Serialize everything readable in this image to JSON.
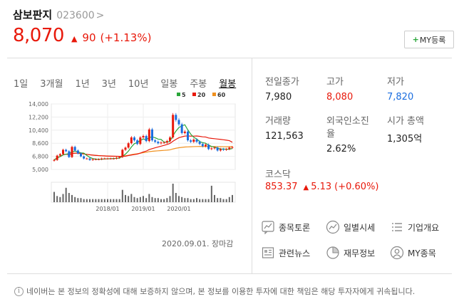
{
  "stock": {
    "name": "삼보판지",
    "code": "023600",
    "code_arrow": ">",
    "price": "8,070",
    "change_arrow": "▲",
    "change": "90",
    "change_pct": "(+1.13%)"
  },
  "my_button": {
    "plus": "+",
    "label": "MY등록"
  },
  "tabs": [
    {
      "label": "1일",
      "active": false
    },
    {
      "label": "3개월",
      "active": false
    },
    {
      "label": "1년",
      "active": false
    },
    {
      "label": "3년",
      "active": false
    },
    {
      "label": "10년",
      "active": false
    },
    {
      "label": "일봉",
      "active": false
    },
    {
      "label": "주봉",
      "active": false
    },
    {
      "label": "월봉",
      "active": true
    }
  ],
  "chart_data": {
    "type": "candlestick",
    "legend": [
      {
        "label": "5",
        "color": "#2aa63a"
      },
      {
        "label": "20",
        "color": "#e8190b"
      },
      {
        "label": "60",
        "color": "#f0901e"
      }
    ],
    "y_ticks": [
      "14,000",
      "12,200",
      "10,400",
      "8,600",
      "6,800",
      "5,000"
    ],
    "ylim": [
      5000,
      14000
    ],
    "x_ticks": [
      "2018/01",
      "2019/01",
      "2020/01"
    ],
    "closes": [
      6300,
      6900,
      7100,
      7700,
      7500,
      6700,
      8100,
      7600,
      7200,
      6800,
      6500,
      6500,
      6300,
      6400,
      6400,
      6400,
      6500,
      6500,
      6500,
      6500,
      6500,
      6600,
      6700,
      7700,
      8000,
      8600,
      9400,
      9000,
      8500,
      9400,
      9600,
      8900,
      10500,
      9000,
      8800,
      8600,
      8700,
      8700,
      8900,
      9400,
      12500,
      11800,
      11200,
      10000,
      10200,
      9000,
      8800,
      9100,
      8800,
      8500,
      8200,
      8400,
      7800,
      7900,
      8000,
      7600,
      7800,
      7700,
      7800,
      8000,
      8070
    ],
    "opens": [
      6200,
      6300,
      6900,
      7100,
      7700,
      7500,
      6700,
      8100,
      7600,
      7200,
      6800,
      6500,
      6500,
      6300,
      6400,
      6400,
      6400,
      6500,
      6500,
      6500,
      6500,
      6500,
      6600,
      6700,
      7700,
      8000,
      8600,
      9400,
      9000,
      8500,
      9400,
      9600,
      8900,
      10500,
      9000,
      8800,
      8600,
      8700,
      8700,
      8900,
      9400,
      12500,
      11800,
      11200,
      10000,
      10200,
      9000,
      8800,
      9100,
      8800,
      8500,
      8200,
      8400,
      7800,
      7900,
      8000,
      7600,
      7800,
      7700,
      7800,
      8000
    ],
    "volumes": [
      10,
      6,
      5,
      8,
      14,
      9,
      7,
      5,
      4,
      4,
      3,
      3,
      3,
      3,
      3,
      3,
      3,
      3,
      3,
      3,
      3,
      3,
      3,
      12,
      7,
      6,
      8,
      5,
      4,
      5,
      6,
      4,
      8,
      5,
      4,
      4,
      3,
      3,
      4,
      6,
      18,
      9,
      6,
      5,
      4,
      4,
      3,
      3,
      4,
      3,
      3,
      3,
      3,
      16,
      7,
      4,
      4,
      3,
      3,
      5,
      7
    ]
  },
  "date_note": "2020.09.01. 장마감",
  "stats": {
    "prev_close_label": "전일종가",
    "prev_close": "7,980",
    "high_label": "고가",
    "high": "8,080",
    "low_label": "저가",
    "low": "7,820",
    "volume_label": "거래량",
    "volume": "121,563",
    "foreign_label_1": "외국인소진",
    "foreign_label_2": "율",
    "foreign": "2.62%",
    "mcap_label": "시가 총액",
    "mcap": "1,305억"
  },
  "kosdaq": {
    "label": "코스닥",
    "value": "853.37",
    "arrow": "▲",
    "change": "5.13",
    "pct": "(+0.60%)"
  },
  "links": {
    "discussion": "종목토론",
    "daily": "일별시세",
    "company": "기업개요",
    "news": "관련뉴스",
    "finance": "재무정보",
    "my": "MY종목"
  },
  "footer": {
    "icon": "i",
    "text": "네이버는 본 정보의 정확성에 대해 보증하지 않으며, 본 정보를 이용한 투자에 대한 책임은 해당 투자자에게 귀속됩니다."
  }
}
